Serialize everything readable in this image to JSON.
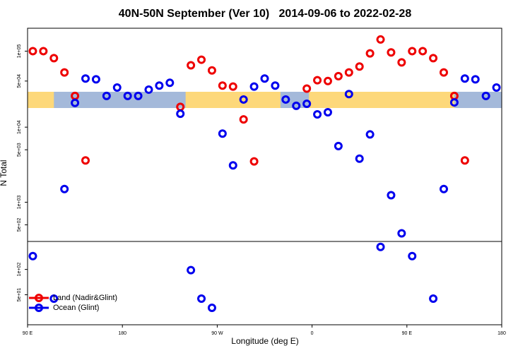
{
  "chart_data": {
    "type": "scatter",
    "title": "40N-50N September (Ver 10)   2014-09-06 to 2022-02-28",
    "xlabel": "Longitude (deg E)",
    "ylabel": "N Total",
    "log_y": true,
    "legend": "lower left",
    "xlim": [
      90,
      540
    ],
    "xticks": [
      {
        "value": 90,
        "label": "90 E"
      },
      {
        "value": 180,
        "label": "180"
      },
      {
        "value": 270,
        "label": "90 W"
      },
      {
        "value": 360,
        "label": "0"
      },
      {
        "value": 450,
        "label": "90 E"
      },
      {
        "value": 540,
        "label": "180"
      }
    ],
    "panels": [
      {
        "ylim": [
          39000,
          170000
        ],
        "yticks": [
          {
            "value": 100000,
            "label": "1e+05"
          },
          {
            "value": 50000,
            "label": "5e+04"
          }
        ]
      },
      {
        "ylim": [
          18000,
          39000
        ],
        "map": true
      },
      {
        "ylim": [
          300,
          18000
        ],
        "yticks": [
          {
            "value": 10000,
            "label": "1e+04"
          },
          {
            "value": 5000,
            "label": "5e+03"
          },
          {
            "value": 1000,
            "label": "1e+03"
          },
          {
            "value": 500,
            "label": "5e+02"
          }
        ]
      },
      {
        "ylim": [
          22,
          215
        ],
        "yticks": [
          {
            "value": 100,
            "label": "1e+02"
          },
          {
            "value": 50,
            "label": "5e+01"
          }
        ]
      }
    ],
    "series": [
      {
        "name": "Land (Nadir&Glint)",
        "color": "#ee0000",
        "x": [
          95,
          105,
          115,
          125,
          135,
          145,
          235,
          245,
          255,
          265,
          275,
          285,
          295,
          305,
          355,
          365,
          375,
          385,
          395,
          405,
          415,
          425,
          435,
          445,
          455,
          465,
          475,
          485,
          495,
          505
        ],
        "values": [
          100000,
          100000,
          85000,
          61000,
          32000,
          3600,
          19000,
          72000,
          82000,
          64000,
          45000,
          44000,
          12700,
          3500,
          42000,
          51000,
          50000,
          56000,
          61000,
          70000,
          95000,
          131000,
          97000,
          77000,
          100000,
          100000,
          85000,
          61000,
          32000,
          3600
        ]
      },
      {
        "name": "Ocean (Glint)",
        "color": "#0000ee",
        "x": [
          95,
          115,
          125,
          135,
          145,
          155,
          165,
          175,
          185,
          195,
          205,
          215,
          225,
          235,
          245,
          255,
          265,
          275,
          285,
          295,
          305,
          315,
          325,
          335,
          345,
          355,
          365,
          375,
          385,
          395,
          405,
          415,
          425,
          435,
          445,
          455,
          475,
          485,
          495,
          505,
          515,
          525,
          535
        ],
        "values": [
          144,
          45,
          1500,
          23000,
          53000,
          52000,
          32000,
          43000,
          32000,
          32000,
          41000,
          45000,
          48000,
          15100,
          98,
          45,
          35,
          8200,
          3100,
          27000,
          44000,
          53000,
          45000,
          27000,
          20000,
          22000,
          14800,
          15800,
          5600,
          35000,
          3800,
          8000,
          185,
          1240,
          385,
          144,
          45,
          1500,
          23500,
          53000,
          52000,
          32000,
          43000
        ]
      }
    ]
  }
}
